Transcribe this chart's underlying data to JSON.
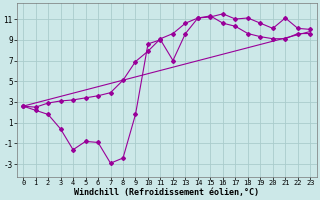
{
  "bg_color": "#cce8e8",
  "grid_color": "#aacccc",
  "line_color": "#990099",
  "xlabel": "Windchill (Refroidissement éolien,°C)",
  "xlim": [
    -0.5,
    23.5
  ],
  "ylim": [
    -4.2,
    12.5
  ],
  "yticks": [
    -3,
    -1,
    1,
    3,
    5,
    7,
    9,
    11
  ],
  "xticks": [
    0,
    1,
    2,
    3,
    4,
    5,
    6,
    7,
    8,
    9,
    10,
    11,
    12,
    13,
    14,
    15,
    16,
    17,
    18,
    19,
    20,
    21,
    22,
    23
  ],
  "line1_x": [
    0,
    1,
    2,
    3,
    4,
    5,
    6,
    7,
    8,
    9,
    10,
    11,
    12,
    13,
    14,
    15,
    16,
    17,
    18,
    19,
    20,
    21,
    22,
    23
  ],
  "line1_y": [
    2.6,
    2.2,
    1.8,
    0.4,
    -1.6,
    -0.8,
    -0.9,
    -2.9,
    -2.4,
    1.8,
    8.6,
    9.0,
    7.0,
    9.6,
    11.1,
    11.2,
    11.5,
    11.0,
    11.1,
    10.6,
    10.1,
    11.1,
    10.1,
    10.0
  ],
  "line2_x": [
    0,
    23
  ],
  "line2_y": [
    2.6,
    9.8
  ],
  "line3_x": [
    0,
    1,
    2,
    3,
    4,
    5,
    6,
    7,
    8,
    9,
    10,
    11,
    12,
    13,
    14,
    15,
    16,
    17,
    18,
    19,
    20,
    21,
    22,
    23
  ],
  "line3_y": [
    2.6,
    2.5,
    2.9,
    3.1,
    3.2,
    3.4,
    3.6,
    3.9,
    5.1,
    6.9,
    7.9,
    9.1,
    9.6,
    10.6,
    11.1,
    11.3,
    10.6,
    10.3,
    9.6,
    9.3,
    9.1,
    9.1,
    9.6,
    9.6
  ],
  "marker": "D",
  "markersize": 2.0,
  "linewidth": 0.8,
  "xlabel_fontsize": 6,
  "tick_fontsize": 5,
  "ytick_fontsize": 5.5
}
